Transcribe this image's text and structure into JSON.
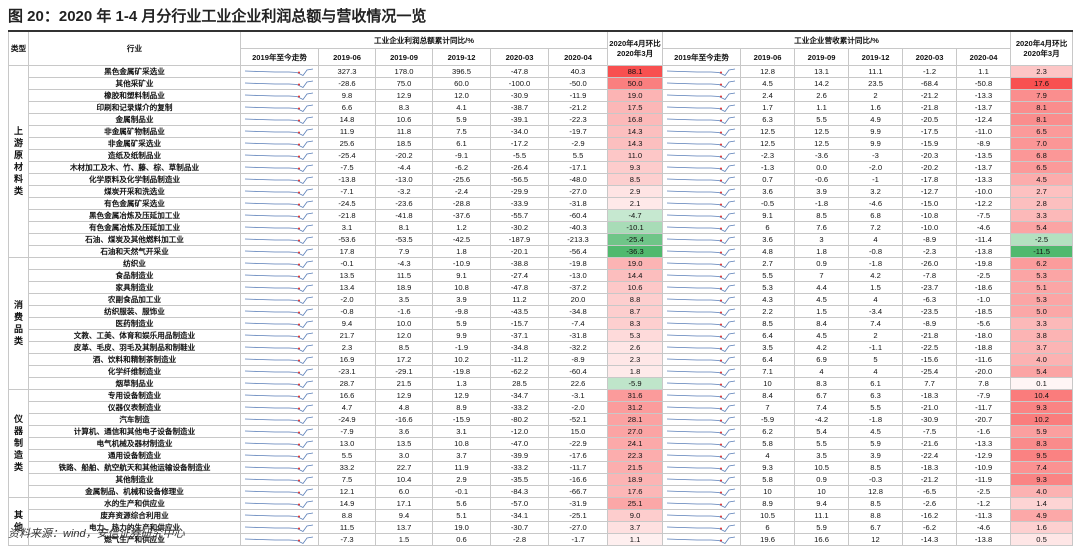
{
  "title": "图 20：2020 年 1-4 月分行业工业企业利润总额与营收情况一览",
  "header": {
    "type": "类型",
    "industry": "行业",
    "profit_group": "工业企业利润总额累计同比/%",
    "revenue_group": "工业企业营收累计同比/%",
    "trend": "2019年至今走势",
    "periods": [
      "2019-06",
      "2019-09",
      "2019-12",
      "2020-03",
      "2020-04"
    ],
    "ring": "2020年4月环比2020年3月"
  },
  "groups": [
    {
      "name": "上游原材料类",
      "rows": [
        [
          "黑色金属矿采选业",
          "327.3",
          "178.0",
          "396.5",
          "-47.8",
          "40.3",
          "88.1",
          "12.8",
          "13.1",
          "11.1",
          "-1.2",
          "1.1",
          "2.3"
        ],
        [
          "其他采矿业",
          "-28.6",
          "75.0",
          "60.0",
          "-100.0",
          "-50.0",
          "50.0",
          "4.5",
          "14.2",
          "23.5",
          "-68.4",
          "-50.8",
          "17.6"
        ],
        [
          "橡胶和塑料制品业",
          "9.8",
          "12.9",
          "12.0",
          "-30.9",
          "-11.9",
          "19.0",
          "2.4",
          "2.6",
          "2",
          "-21.2",
          "-13.3",
          "7.9"
        ],
        [
          "印刷和记录媒介的复制",
          "6.6",
          "8.3",
          "4.1",
          "-38.7",
          "-21.2",
          "17.5",
          "1.7",
          "1.1",
          "1.6",
          "-21.8",
          "-13.7",
          "8.1"
        ],
        [
          "金属制品业",
          "14.8",
          "10.6",
          "5.9",
          "-39.1",
          "-22.3",
          "16.8",
          "6.3",
          "5.5",
          "4.9",
          "-20.5",
          "-12.4",
          "8.1"
        ],
        [
          "非金属矿物制品业",
          "11.9",
          "11.8",
          "7.5",
          "-34.0",
          "-19.7",
          "14.3",
          "12.5",
          "12.5",
          "9.9",
          "-17.5",
          "-11.0",
          "6.5"
        ],
        [
          "非金属矿采选业",
          "25.6",
          "18.5",
          "6.1",
          "-17.2",
          "-2.9",
          "14.3",
          "12.5",
          "12.5",
          "9.9",
          "-15.9",
          "-8.9",
          "7.0"
        ],
        [
          "造纸及纸制品业",
          "-25.4",
          "-20.2",
          "-9.1",
          "-5.5",
          "5.5",
          "11.0",
          "-2.3",
          "-3.6",
          "-3",
          "-20.3",
          "-13.5",
          "6.8"
        ],
        [
          "木材加工及木、竹、藤、棕、草制品业",
          "-7.5",
          "-4.4",
          "-6.2",
          "-26.4",
          "-17.1",
          "9.3",
          "-1.3",
          "0.0",
          "-2.0",
          "-20.2",
          "-13.7",
          "6.5"
        ],
        [
          "化学原料及化学制品制造业",
          "-13.8",
          "-13.0",
          "-25.6",
          "-56.5",
          "-48.0",
          "8.5",
          "0.7",
          "-0.6",
          "-1",
          "-17.8",
          "-13.3",
          "4.5"
        ],
        [
          "煤炭开采和洗选业",
          "-7.1",
          "-3.2",
          "-2.4",
          "-29.9",
          "-27.0",
          "2.9",
          "3.6",
          "3.9",
          "3.2",
          "-12.7",
          "-10.0",
          "2.7"
        ],
        [
          "有色金属矿采选业",
          "-24.5",
          "-23.6",
          "-28.8",
          "-33.9",
          "-31.8",
          "2.1",
          "-0.5",
          "-1.8",
          "-4.6",
          "-15.0",
          "-12.2",
          "2.8"
        ],
        [
          "黑色金属冶炼及压延加工业",
          "-21.8",
          "-41.8",
          "-37.6",
          "-55.7",
          "-60.4",
          "-4.7",
          "9.1",
          "8.5",
          "6.8",
          "-10.8",
          "-7.5",
          "3.3"
        ],
        [
          "有色金属冶炼及压延加工业",
          "3.1",
          "8.1",
          "1.2",
          "-30.2",
          "-40.3",
          "-10.1",
          "6",
          "7.6",
          "7.2",
          "-10.0",
          "-4.6",
          "5.4"
        ],
        [
          "石油、煤炭及其他燃料加工业",
          "-53.6",
          "-53.5",
          "-42.5",
          "-187.9",
          "-213.3",
          "-25.4",
          "3.6",
          "3",
          "4",
          "-8.9",
          "-11.4",
          "-2.5"
        ],
        [
          "石油和天然气开采业",
          "17.8",
          "7.9",
          "1.8",
          "-20.1",
          "-56.4",
          "-36.3",
          "4.8",
          "1.8",
          "-0.8",
          "-2.3",
          "-13.8",
          "-11.5"
        ]
      ]
    },
    {
      "name": "消费品类",
      "rows": [
        [
          "纺织业",
          "-0.1",
          "-4.3",
          "-10.9",
          "-38.8",
          "-19.8",
          "19.0",
          "2.7",
          "0.9",
          "-1.8",
          "-26.0",
          "-19.8",
          "6.2"
        ],
        [
          "食品制造业",
          "13.5",
          "11.5",
          "9.1",
          "-27.4",
          "-13.0",
          "14.4",
          "5.5",
          "7",
          "4.2",
          "-7.8",
          "-2.5",
          "5.3"
        ],
        [
          "家具制造业",
          "13.4",
          "18.9",
          "10.8",
          "-47.8",
          "-37.2",
          "10.6",
          "5.3",
          "4.4",
          "1.5",
          "-23.7",
          "-18.6",
          "5.1"
        ],
        [
          "农副食品加工业",
          "-2.0",
          "3.5",
          "3.9",
          "11.2",
          "20.0",
          "8.8",
          "4.3",
          "4.5",
          "4",
          "-6.3",
          "-1.0",
          "5.3"
        ],
        [
          "纺织服装、服饰业",
          "-0.8",
          "-1.6",
          "-9.8",
          "-43.5",
          "-34.8",
          "8.7",
          "2.2",
          "1.5",
          "-3.4",
          "-23.5",
          "-18.5",
          "5.0"
        ],
        [
          "医药制造业",
          "9.4",
          "10.0",
          "5.9",
          "-15.7",
          "-7.4",
          "8.3",
          "8.5",
          "8.4",
          "7.4",
          "-8.9",
          "-5.6",
          "3.3"
        ],
        [
          "文教、工美、体育和娱乐用品制造业",
          "21.7",
          "12.0",
          "9.9",
          "-37.1",
          "-31.8",
          "5.3",
          "6.4",
          "4.5",
          "2",
          "-21.8",
          "-18.0",
          "3.8"
        ],
        [
          "皮革、毛皮、羽毛及其制品和制鞋业",
          "2.3",
          "8.5",
          "-1.9",
          "-34.8",
          "-32.2",
          "2.6",
          "3.5",
          "4.2",
          "-1.1",
          "-22.5",
          "-18.8",
          "3.7"
        ],
        [
          "酒、饮料和精制茶制造业",
          "16.9",
          "17.2",
          "10.2",
          "-11.2",
          "-8.9",
          "2.3",
          "6.4",
          "6.9",
          "5",
          "-15.6",
          "-11.6",
          "4.0"
        ],
        [
          "化学纤维制造业",
          "-23.1",
          "-29.1",
          "-19.8",
          "-62.2",
          "-60.4",
          "1.8",
          "7.1",
          "4",
          "4",
          "-25.4",
          "-20.0",
          "5.4"
        ],
        [
          "烟草制品业",
          "28.7",
          "21.5",
          "1.3",
          "28.5",
          "22.6",
          "-5.9",
          "10",
          "8.3",
          "6.1",
          "7.7",
          "7.8",
          "0.1"
        ]
      ]
    },
    {
      "name": "仪器制造类",
      "rows": [
        [
          "专用设备制造业",
          "16.6",
          "12.9",
          "12.9",
          "-34.7",
          "-3.1",
          "31.6",
          "8.4",
          "6.7",
          "6.3",
          "-18.3",
          "-7.9",
          "10.4"
        ],
        [
          "仪器仪表制造业",
          "4.7",
          "4.8",
          "8.9",
          "-33.2",
          "-2.0",
          "31.2",
          "7",
          "7.4",
          "5.5",
          "-21.0",
          "-11.7",
          "9.3"
        ],
        [
          "汽车制造",
          "-24.9",
          "-16.6",
          "-15.9",
          "-80.2",
          "-52.1",
          "28.1",
          "-5.9",
          "-4.2",
          "-1.8",
          "-30.9",
          "-20.7",
          "10.2"
        ],
        [
          "计算机、通信和其他电子设备制造业",
          "-7.9",
          "3.6",
          "3.1",
          "-12.0",
          "15.0",
          "27.0",
          "6.2",
          "5.4",
          "4.5",
          "-7.5",
          "-1.6",
          "5.9"
        ],
        [
          "电气机械及器材制造业",
          "13.0",
          "13.5",
          "10.8",
          "-47.0",
          "-22.9",
          "24.1",
          "5.8",
          "5.5",
          "5.9",
          "-21.6",
          "-13.3",
          "8.3"
        ],
        [
          "通用设备制造业",
          "5.5",
          "3.0",
          "3.7",
          "-39.9",
          "-17.6",
          "22.3",
          "4",
          "3.5",
          "3.9",
          "-22.4",
          "-12.9",
          "9.5"
        ],
        [
          "铁路、船舶、航空航天和其他运输设备制造业",
          "33.2",
          "22.7",
          "11.9",
          "-33.2",
          "-11.7",
          "21.5",
          "9.3",
          "10.5",
          "8.5",
          "-18.3",
          "-10.9",
          "7.4"
        ],
        [
          "其他制造业",
          "7.5",
          "10.4",
          "2.9",
          "-35.5",
          "-16.6",
          "18.9",
          "5.8",
          "0.9",
          "-0.3",
          "-21.2",
          "-11.9",
          "9.3"
        ],
        [
          "金属制品、机械和设备修理业",
          "12.1",
          "6.0",
          "-0.1",
          "-84.3",
          "-66.7",
          "17.6",
          "10",
          "10",
          "12.8",
          "-6.5",
          "-2.5",
          "4.0"
        ]
      ]
    },
    {
      "name": "其他",
      "rows": [
        [
          "水的生产和供应业",
          "14.9",
          "17.1",
          "5.6",
          "-57.0",
          "-31.9",
          "25.1",
          "8.9",
          "9.4",
          "8.5",
          "-2.6",
          "-1.2",
          "1.4"
        ],
        [
          "废弃资源综合利用业",
          "8.8",
          "9.4",
          "5.1",
          "-34.1",
          "-25.1",
          "9.0",
          "10.5",
          "11.1",
          "8.8",
          "-16.2",
          "-11.3",
          "4.9"
        ],
        [
          "电力、热力的生产和供应业",
          "11.5",
          "13.7",
          "19.0",
          "-30.7",
          "-27.0",
          "3.7",
          "6",
          "5.9",
          "6.7",
          "-6.2",
          "-4.6",
          "1.6"
        ],
        [
          "燃气生产和供应业",
          "-7.3",
          "1.5",
          "0.6",
          "-2.8",
          "-1.7",
          "1.1",
          "19.6",
          "16.6",
          "12",
          "-14.3",
          "-13.8",
          "0.5"
        ]
      ]
    }
  ],
  "source": "资料来源：wind，安信证券研究中心"
}
